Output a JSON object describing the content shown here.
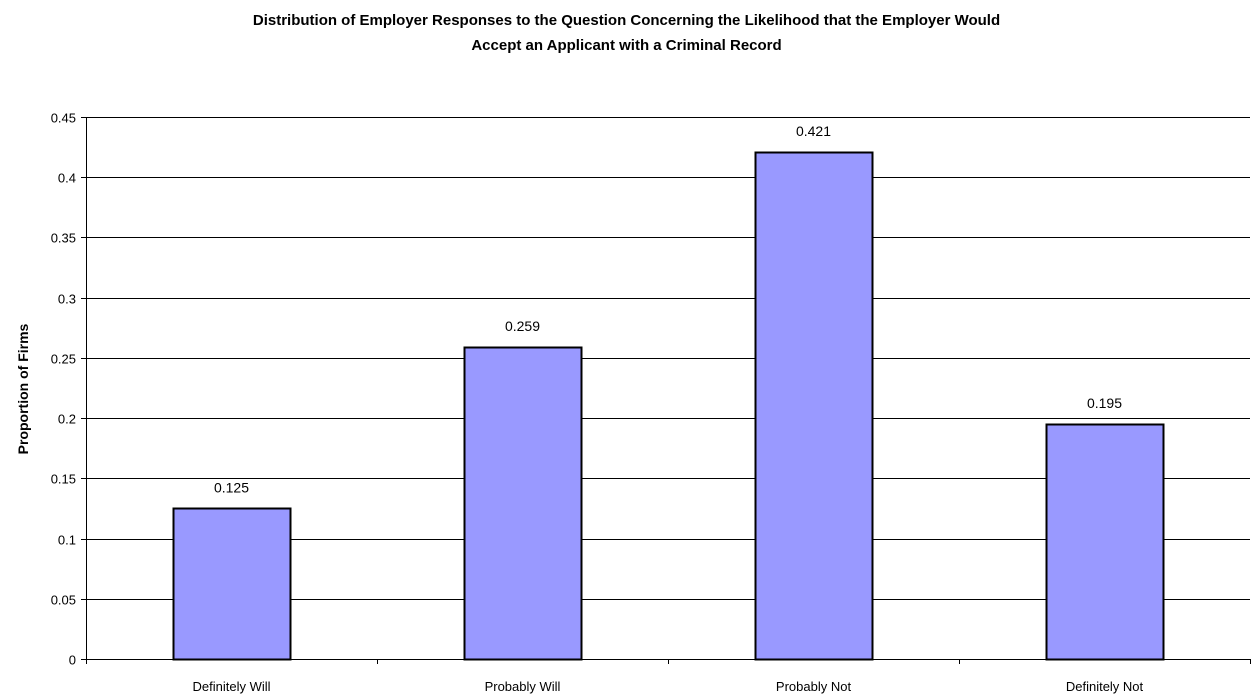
{
  "chart_data": {
    "type": "bar",
    "title_lines": [
      "Distribution of Employer Responses to the Question Concerning the Likelihood that the Employer Would",
      "Accept an Applicant with a Criminal Record"
    ],
    "xlabel": "",
    "ylabel": "Proportion of Firms",
    "categories": [
      "Definitely Will",
      "Probably Will",
      "Probably Not",
      "Definitely Not"
    ],
    "values": [
      0.125,
      0.259,
      0.421,
      0.195
    ],
    "data_labels": [
      "0.125",
      "0.259",
      "0.421",
      "0.195"
    ],
    "ylim": [
      0,
      0.45
    ],
    "yticks": [
      0,
      0.05,
      0.1,
      0.15,
      0.2,
      0.25,
      0.3,
      0.35,
      0.4,
      0.45
    ],
    "ytick_labels": [
      "0",
      "0.05",
      "0.1",
      "0.15",
      "0.2",
      "0.25",
      "0.3",
      "0.35",
      "0.4",
      "0.45"
    ],
    "grid": true,
    "legend": false,
    "bar_color": "#9999ff",
    "bar_edge_color": "#000000",
    "gridline_color": "#000000"
  }
}
